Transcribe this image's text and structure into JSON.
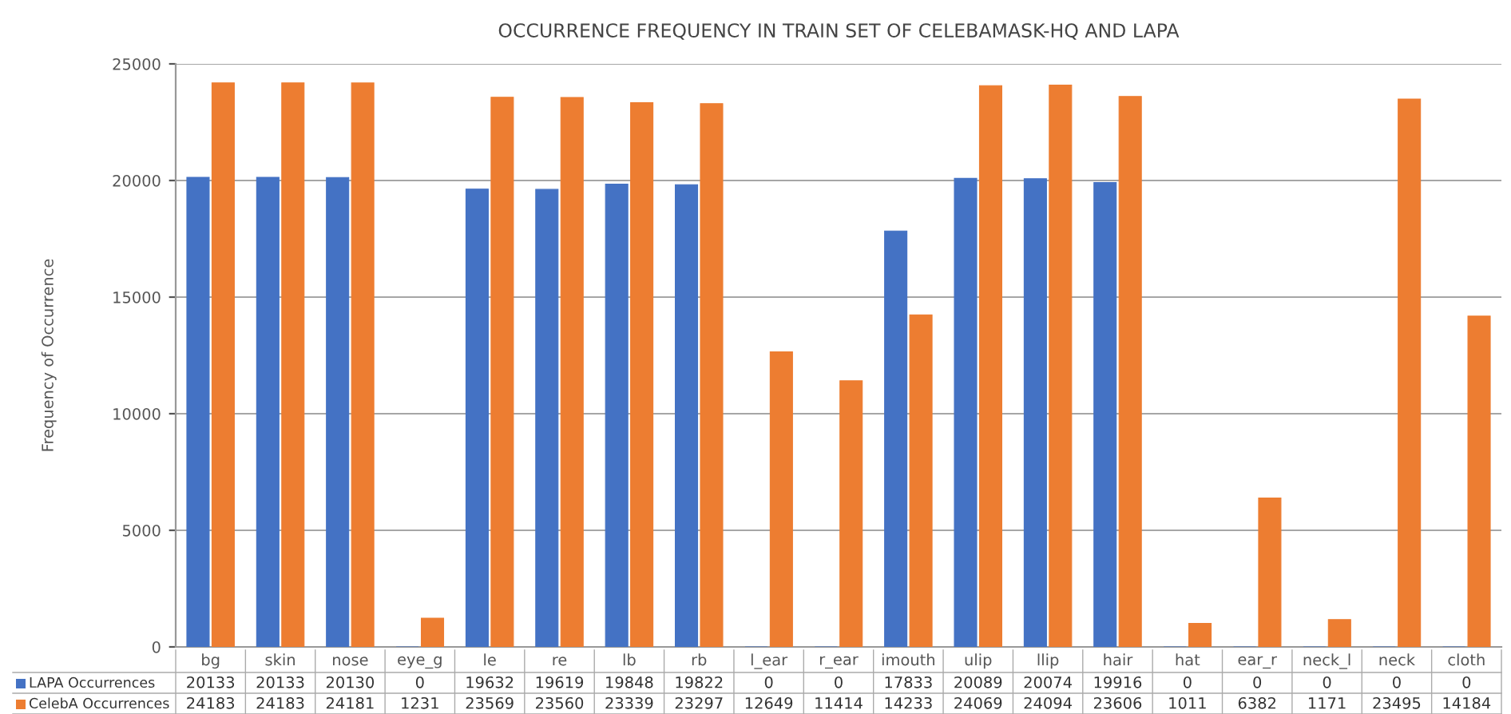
{
  "chart_data": {
    "type": "bar",
    "title": "OCCURRENCE FREQUENCY IN TRAIN SET OF CELEBAMASK-HQ AND LAPA",
    "ylabel": "Frequency of Occurrence",
    "categories": [
      "bg",
      "skin",
      "nose",
      "eye_g",
      "le",
      "re",
      "lb",
      "rb",
      "l_ear",
      "r_ear",
      "imouth",
      "ulip",
      "llip",
      "hair",
      "hat",
      "ear_r",
      "neck_l",
      "neck",
      "cloth"
    ],
    "series": [
      {
        "name": "LAPA Occurrences",
        "color": "#4472c4",
        "values": [
          20133,
          20133,
          20130,
          0,
          19632,
          19619,
          19848,
          19822,
          0,
          0,
          17833,
          20089,
          20074,
          19916,
          0,
          0,
          0,
          0,
          0
        ]
      },
      {
        "name": "CelebA Occurrences",
        "color": "#ed7d31",
        "values": [
          24183,
          24183,
          24181,
          1231,
          23569,
          23560,
          23339,
          23297,
          12649,
          11414,
          14233,
          24069,
          24094,
          23606,
          1011,
          6382,
          1171,
          23495,
          14184
        ]
      }
    ],
    "ylim": [
      0,
      25000
    ],
    "yticks": [
      0,
      5000,
      10000,
      15000,
      20000,
      25000
    ],
    "grid": "y",
    "data_labels": true,
    "legend": "bottom"
  }
}
